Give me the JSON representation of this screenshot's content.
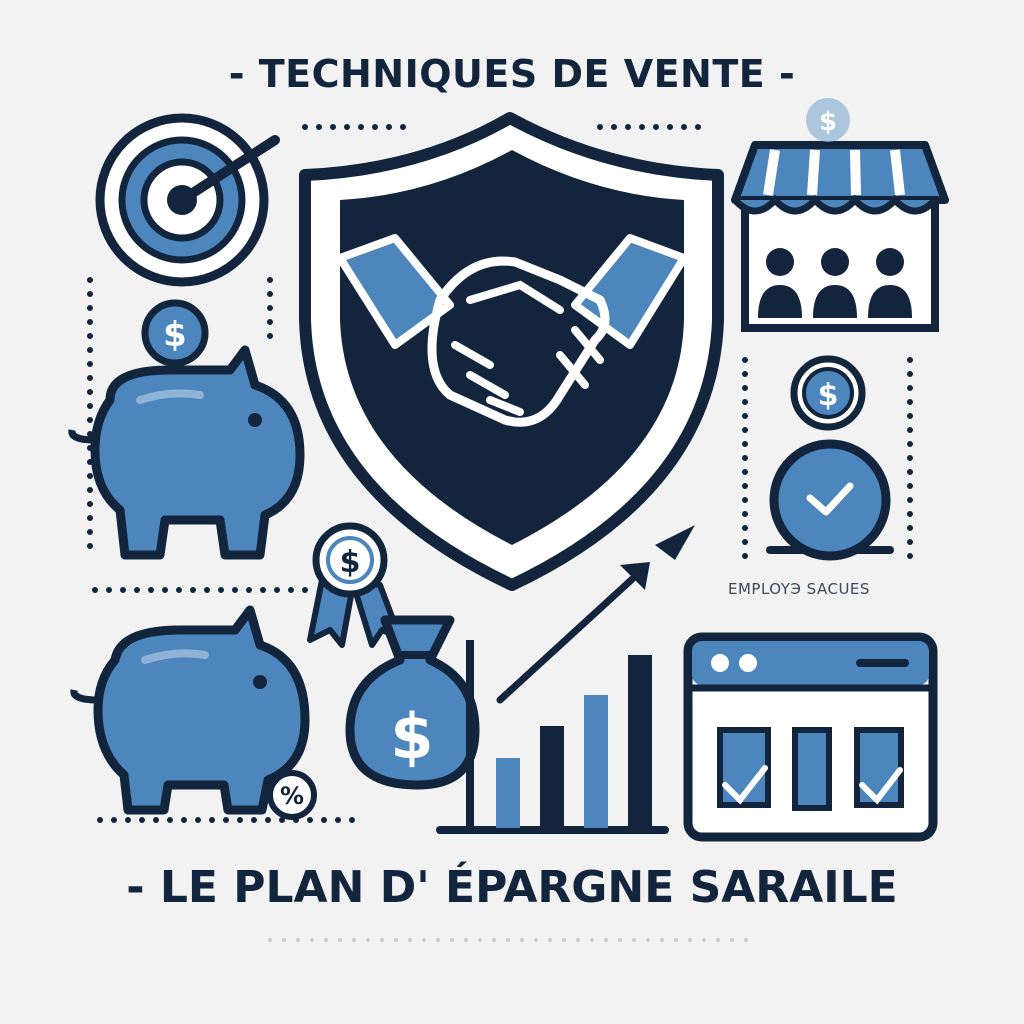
{
  "header": {
    "title": "- TECHNIQUES DE VENTE -"
  },
  "footer": {
    "title": "- LE PLAN D' ÉPARGNE SARAILE"
  },
  "caption": {
    "text": "EMPLOYЭ SACUES"
  },
  "icons": {
    "currency_symbol": "$",
    "percent_symbol": "%"
  },
  "colors": {
    "navy": "#12253d",
    "blue": "#4d86bd",
    "light_blue": "#8fb3d6",
    "background": "#f1f2f1"
  }
}
